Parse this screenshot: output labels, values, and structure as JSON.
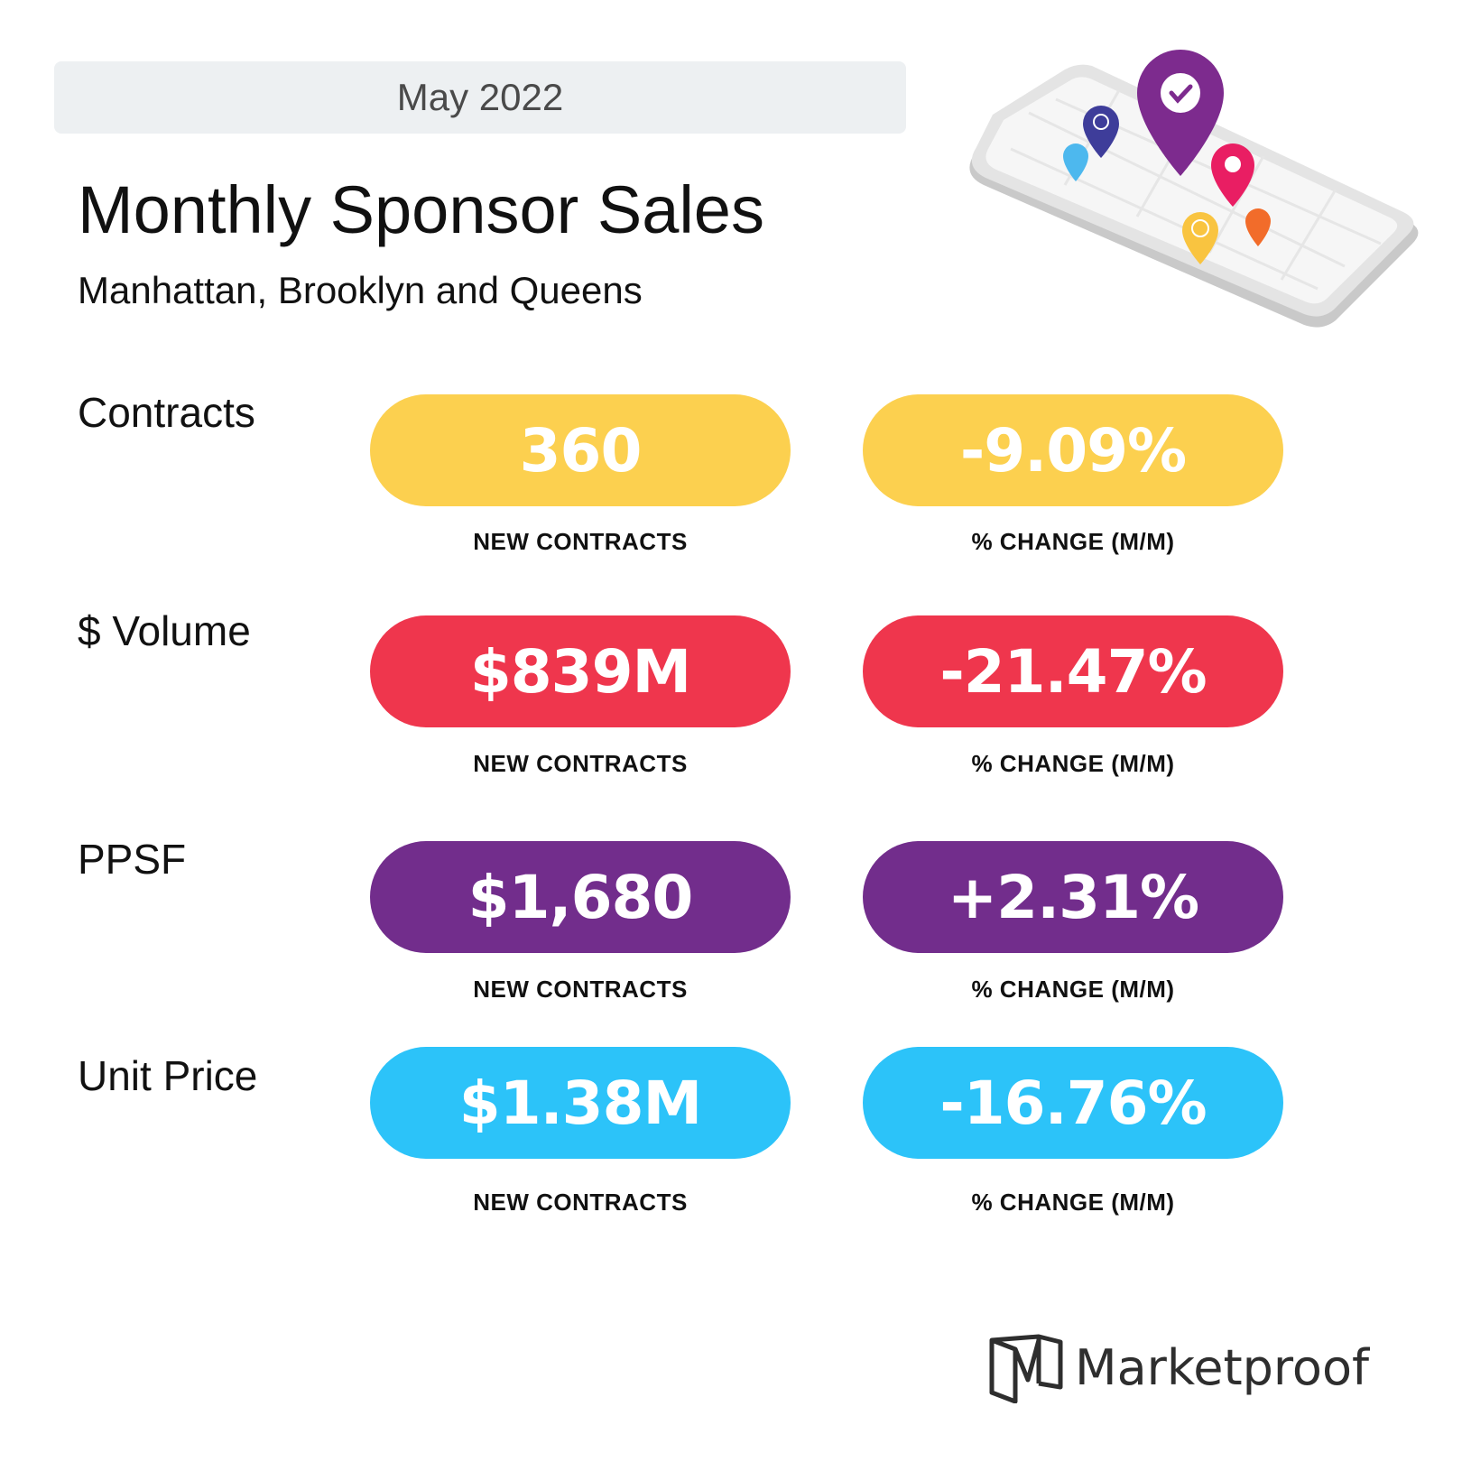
{
  "header": {
    "date": "May 2022",
    "title": "Monthly Sponsor Sales",
    "subtitle": "Manhattan, Brooklyn and Queens"
  },
  "metrics": [
    {
      "label": "Contracts",
      "value": "360",
      "value_caption": "NEW CONTRACTS",
      "change": "-9.09%",
      "change_caption": "% CHANGE (M/M)",
      "color": "#fcd04f"
    },
    {
      "label": "$ Volume",
      "value": "$839M",
      "value_caption": "NEW CONTRACTS",
      "change": "-21.47%",
      "change_caption": "% CHANGE (M/M)",
      "color": "#ef364d"
    },
    {
      "label": "PPSF",
      "value": "$1,680",
      "value_caption": "NEW CONTRACTS",
      "change": "+2.31%",
      "change_caption": "% CHANGE (M/M)",
      "color": "#722d8c"
    },
    {
      "label": "Unit Price",
      "value": "$1.38M",
      "value_caption": "NEW CONTRACTS",
      "change": "-16.76%",
      "change_caption": "% CHANGE (M/M)",
      "color": "#2cc3f9"
    }
  ],
  "illustration": {
    "icon": "phone-map-pins-icon",
    "pin_colors": [
      "#4db8ee",
      "#3e3d9a",
      "#7d2b8e",
      "#e91e63",
      "#f9c440",
      "#f26c2a"
    ]
  },
  "brand": {
    "logo_icon": "marketproof-logo-icon",
    "name": "Marketproof"
  }
}
